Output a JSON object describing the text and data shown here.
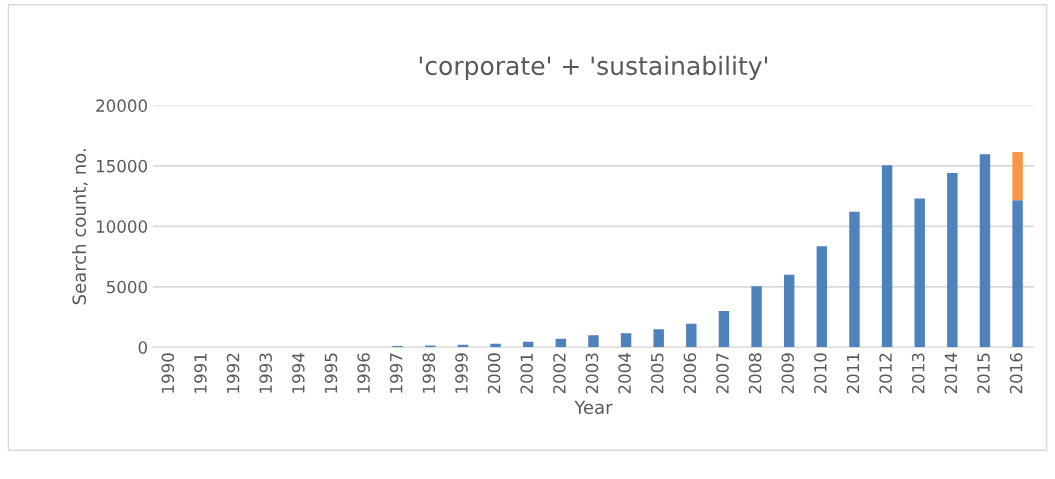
{
  "chart_data": {
    "type": "bar",
    "title": "'corporate' + 'sustainability'",
    "xlabel": "Year",
    "ylabel": "Search count, no.",
    "categories": [
      "1990",
      "1991",
      "1992",
      "1993",
      "1994",
      "1995",
      "1996",
      "1997",
      "1998",
      "1999",
      "2000",
      "2001",
      "2002",
      "2003",
      "2004",
      "2005",
      "2006",
      "2007",
      "2008",
      "2009",
      "2010",
      "2011",
      "2012",
      "2013",
      "2014",
      "2015",
      "2016"
    ],
    "stacked": true,
    "series": [
      {
        "color": "#4f81bd",
        "values": [
          0,
          0,
          0,
          0,
          0,
          0,
          0,
          100,
          150,
          200,
          300,
          450,
          700,
          1000,
          1150,
          1500,
          1950,
          3000,
          5050,
          6000,
          8350,
          11200,
          15050,
          12300,
          14400,
          15950,
          12150
        ]
      },
      {
        "color": "#f79646",
        "values": [
          0,
          0,
          0,
          0,
          0,
          0,
          0,
          0,
          0,
          0,
          0,
          0,
          0,
          0,
          0,
          0,
          0,
          0,
          0,
          0,
          0,
          0,
          0,
          0,
          0,
          0,
          4000
        ]
      }
    ],
    "ylim": [
      0,
      20000
    ],
    "yticks": [
      0,
      5000,
      10000,
      15000,
      20000
    ],
    "grid": "y",
    "legend": false
  }
}
